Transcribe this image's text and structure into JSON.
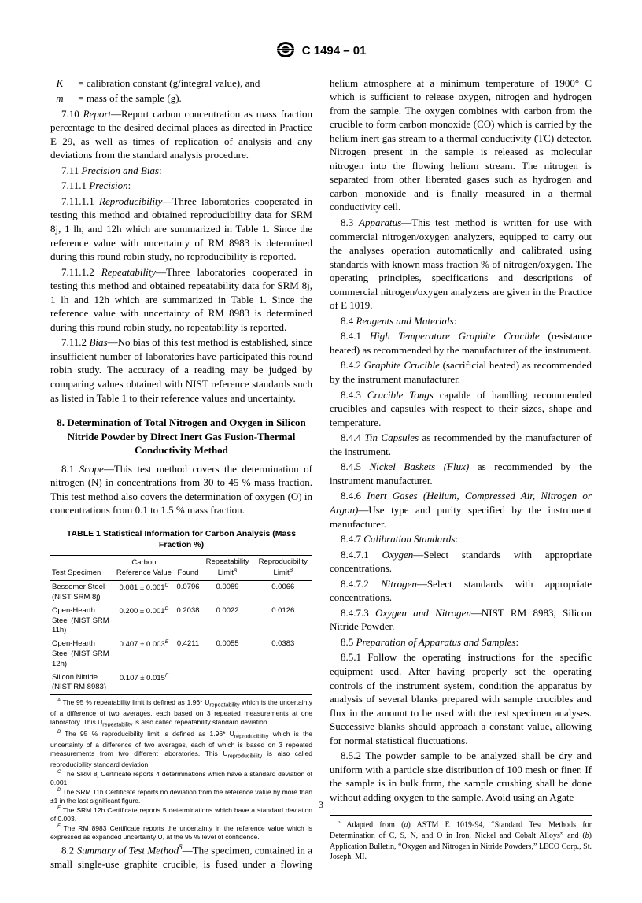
{
  "header": {
    "designation": "C 1494 – 01"
  },
  "definitions": [
    {
      "var": "K",
      "text": "calibration constant (g/integral value), and"
    },
    {
      "var": "m",
      "text": "mass of the sample (g)."
    }
  ],
  "paragraphs": {
    "p710": "7.10 <span class='i'>Report</span>—Report carbon concentration as mass fraction percentage to the desired decimal places as directed in Practice E 29, as well as times of replication of analysis and any deviations from the standard analysis procedure.",
    "p711": "7.11 <span class='i'>Precision and Bias</span>:",
    "p7111": "7.11.1 <span class='i'>Precision</span>:",
    "p71111": "7.11.1.1 <span class='i'>Reproducibility</span>—Three laboratories cooperated in testing this method and obtained reproducibility data for SRM 8j, 1 lh, and 12h which are summarized in Table 1. Since the reference value with uncertainty of RM 8983 is determined during this round robin study, no reproducibility is reported.",
    "p71112": "7.11.1.2 <span class='i'>Repeatability</span>—Three laboratories cooperated in testing this method and obtained repeatability data for SRM 8j, 1 lh and 12h which are summarized in Table 1. Since the reference value with uncertainty of RM 8983 is determined during this round robin study, no repeatability is reported.",
    "p7112": "7.11.2 <span class='i'>Bias</span>—No bias of this test method is established, since insufficient number of laboratories have participated this round robin study. The accuracy of a reading may be judged by comparing values obtained with NIST reference standards such as listed in Table 1 to their reference values and uncertainty.",
    "sec8": "8. Determination of Total Nitrogen and Oxygen in Silicon Nitride Powder by Direct Inert Gas Fusion-Thermal Conductivity Method",
    "p81": "8.1 <span class='i'>Scope</span>—This test method covers the determination of nitrogen (N) in concentrations from 30 to 45 % mass fraction. This test method also covers the determination of oxygen (O) in concentrations from 0.1 to 1.5 % mass fraction.",
    "p82": "8.2 <span class='i'>Summary of Test Method</span><span class='sup'>5</span>—The specimen, contained in a small single-use graphite crucible, is fused under a flowing helium atmosphere at a minimum temperature of 1900° C which is sufficient to release oxygen, nitrogen and hydrogen from the sample. The oxygen combines with carbon from the crucible to form carbon monoxide (CO) which is carried by the helium inert gas stream to a thermal conductivity (TC) detector. Nitrogen present in the sample is released as molecular nitrogen into the flowing helium stream. The nitrogen is separated from other liberated gases such as hydrogen and carbon monoxide and is finally measured in a thermal conductivity cell.",
    "p83": "8.3 <span class='i'>Apparatus</span>—This test method is written for use with commercial nitrogen/oxygen analyzers, equipped to carry out the analyses operation automatically and calibrated using standards with known mass fraction % of nitrogen/oxygen. The operating principles, specifications and descriptions of commercial nitrogen/oxygen analyzers are given in the Practice of E 1019.",
    "p84": "8.4 <span class='i'>Reagents and Materials</span>:",
    "p841": "8.4.1 <span class='i'>High Temperature Graphite Crucible</span> (resistance heated) as recommended by the manufacturer of the instrument.",
    "p842": "8.4.2 <span class='i'>Graphite Crucible</span> (sacrificial heated) as recommended by the instrument manufacturer.",
    "p843": "8.4.3 <span class='i'>Crucible Tongs</span> capable of handling recommended crucibles and capsules with respect to their sizes, shape and temperature.",
    "p844": "8.4.4 <span class='i'>Tin Capsules</span>  as recommended by the manufacturer of the instrument.",
    "p845": "8.4.5 <span class='i'>Nickel Baskets (Flux)</span>  as recommended by the instrument manufacturer.",
    "p846": "8.4.6 <span class='i'>Inert Gases (Helium, Compressed Air, Nitrogen or Argon)</span>—Use type and purity specified by the instrument manufacturer.",
    "p847": "8.4.7 <span class='i'>Calibration Standards</span>:",
    "p8471": "8.4.7.1 <span class='i'>Oxygen</span>—Select standards with appropriate concentrations.",
    "p8472": "8.4.7.2 <span class='i'>Nitrogen</span>—Select standards with appropriate concentrations.",
    "p8473": "8.4.7.3 <span class='i'>Oxygen and Nitrogen</span>—NIST RM 8983, Silicon Nitride Powder.",
    "p85": "8.5 <span class='i'>Preparation of Apparatus and Samples</span>:",
    "p851": "8.5.1 Follow the operating instructions for the specific equipment used. After having properly set the operating controls of the instrument system, condition the apparatus by analysis of several blanks prepared with sample crucibles and flux in the amount to be used with the test specimen analyses. Successive blanks should approach a constant value, allowing for normal statistical fluctuations.",
    "p852": "8.5.2 The powder sample to be analyzed shall be dry and uniform with a particle size distribution of 100 mesh or finer. If the sample is in bulk form, the sample crushing shall be done without adding oxygen to the sample. Avoid using an Agate"
  },
  "table": {
    "title": "TABLE 1  Statistical Information for Carbon Analysis (Mass Fraction %)",
    "columns": [
      "Test Specimen",
      "Carbon Reference Value",
      "Found",
      "Repeatability Limit",
      "Reproducibility Limit"
    ],
    "col_sup": [
      "",
      "",
      "",
      "A",
      "B"
    ],
    "rows": [
      {
        "specimen": "Bessemer Steel (NIST SRM 8j)",
        "ref": "0.081 ± 0.001",
        "ref_sup": "C",
        "found": "0.0796",
        "repeat": "0.0089",
        "repro": "0.0066"
      },
      {
        "specimen": "Open-Hearth Steel (NIST SRM 11h)",
        "ref": "0.200 ± 0.001",
        "ref_sup": "D",
        "found": "0.2038",
        "repeat": "0.0022",
        "repro": "0.0126"
      },
      {
        "specimen": "Open-Hearth Steel (NIST SRM 12h)",
        "ref": "0.407 ± 0.003",
        "ref_sup": "E",
        "found": "0.4211",
        "repeat": "0.0055",
        "repro": "0.0383"
      },
      {
        "specimen": "Silicon Nitride (NIST RM 8983)",
        "ref": "0.107 ± 0.015",
        "ref_sup": "F",
        "found": ". . .",
        "repeat": ". . .",
        "repro": ". . ."
      }
    ],
    "footnotes": {
      "A": "The 95 % repeatability limit is defined as 1.96* U<sub>repeatability</sub> which is the uncertainty of a difference of two averages, each based on 3 repeated measurements at one laboratory. This U<sub>repeatability</sub> is also called repeatability standard deviation.",
      "B": "The 95 % reproducibility limit is defined as 1.96* U<sub>reproducibility</sub> which is the uncertainty of a difference of two averages, each of which is based on 3 repeated measurements from two different laboratories. This U<sub>reproducibility</sub> is also called reproducibility standard deviation.",
      "C": "The SRM 8j Certificate reports 4 determinations which have a standard deviation of 0.001.",
      "D": "The SRM 11h Certificate reports no deviation from the reference value by more than ±1 in the last significant figure.",
      "E": "The SRM 12h Certificate reports 5 determinations which have a standard deviation of 0.003.",
      "F": "The RM 8983 Certificate reports the uncertainty in the reference value which is expressed as expanded uncertainty U, at the 95 % level of confidence."
    }
  },
  "page_footnote": "Adapted from (<span class='i'>a</span>) ASTM E 1019-94, “Standard Test Methods for Determination of C, S, N, and O in Iron, Nickel and Cobalt Alloys” and (<span class='i'>b</span>) Application Bulletin, “Oxygen and Nitrogen in Nitride Powders,” LECO Corp., St. Joseph, MI.",
  "page_number": "3"
}
